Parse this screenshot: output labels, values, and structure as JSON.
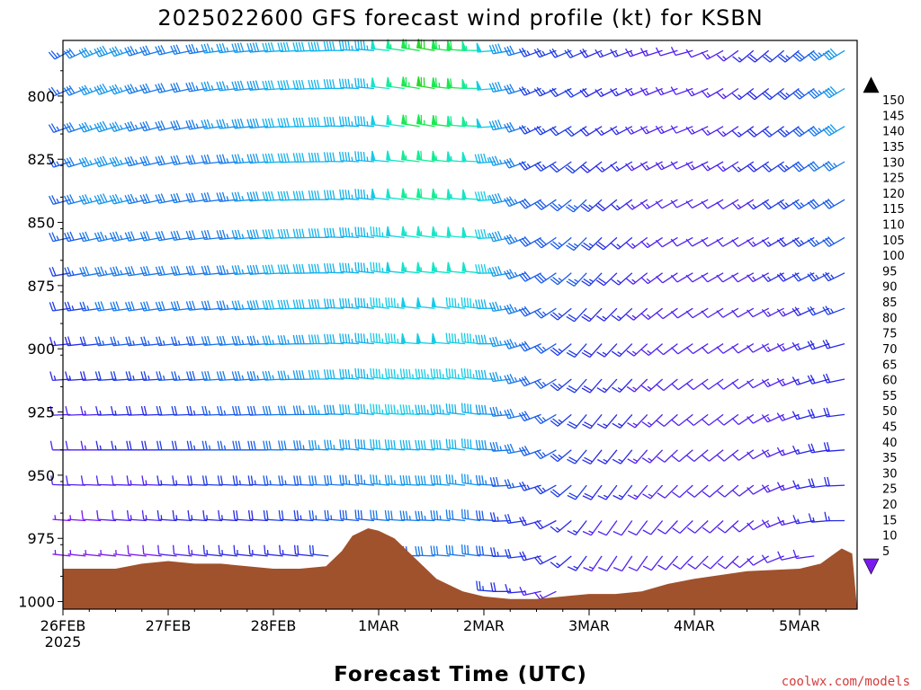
{
  "chart_data": {
    "type": "wind-barb-profile",
    "title": "2025022600 GFS forecast wind profile (kt) for KSBN",
    "xlabel": "Forecast Time (UTC)",
    "x_ticks": [
      {
        "label": "26FEB",
        "day": 0
      },
      {
        "label": "27FEB",
        "day": 1
      },
      {
        "label": "28FEB",
        "day": 2
      },
      {
        "label": "1MAR",
        "day": 3
      },
      {
        "label": "2MAR",
        "day": 4
      },
      {
        "label": "3MAR",
        "day": 5
      },
      {
        "label": "4MAR",
        "day": 6
      },
      {
        "label": "5MAR",
        "day": 7
      }
    ],
    "x_year_label": "2025",
    "xlim_days": [
      0,
      7.5
    ],
    "y_ticks": [
      800,
      825,
      850,
      875,
      900,
      925,
      950,
      975,
      1000
    ],
    "y_unit": "hPa",
    "ylim": [
      1003,
      778
    ],
    "barb_levels": [
      782,
      797,
      812,
      826,
      841,
      856,
      870,
      884,
      898,
      912,
      926,
      940,
      954,
      968,
      982,
      996
    ],
    "colorbar": {
      "unit": "kt",
      "levels": [
        5,
        10,
        15,
        20,
        25,
        30,
        35,
        40,
        45,
        50,
        55,
        60,
        65,
        70,
        75,
        80,
        85,
        90,
        95,
        100,
        105,
        110,
        115,
        120,
        125,
        130,
        135,
        140,
        145,
        150
      ],
      "colors": [
        "#7a18f0",
        "#5020f0",
        "#2828e8",
        "#1e3ce6",
        "#1a5aea",
        "#1878ea",
        "#1496ec",
        "#12b2ec",
        "#14cce6",
        "#16e4c8",
        "#14ec94",
        "#18e850",
        "#28d828",
        "#6ae020",
        "#aaee18",
        "#e0f010",
        "#f6e010",
        "#f8c410",
        "#f8a810",
        "#f88c10",
        "#f87210",
        "#f85a10",
        "#f84010",
        "#f82a18",
        "#f41c30",
        "#ec1650",
        "#e41670",
        "#e41890",
        "#e41cb4",
        "#e020d8"
      ]
    },
    "surface_pressure": {
      "x_days": [
        0,
        0.5,
        0.75,
        1.0,
        1.25,
        1.5,
        1.75,
        2.0,
        2.25,
        2.5,
        2.65,
        2.75,
        2.9,
        3.0,
        3.15,
        3.35,
        3.55,
        3.8,
        4.0,
        4.25,
        4.5,
        4.75,
        5.0,
        5.25,
        5.5,
        5.75,
        6.0,
        6.5,
        7.0,
        7.2,
        7.3,
        7.4,
        7.5
      ],
      "hpa": [
        987,
        987,
        985,
        984,
        985,
        985,
        986,
        987,
        987,
        986,
        980,
        974,
        971,
        972,
        975,
        983,
        991,
        996,
        998,
        999,
        999,
        998,
        997,
        997,
        996,
        993,
        991,
        988,
        987,
        985,
        982,
        979,
        981
      ]
    },
    "barb_rows": [
      {
        "p": 782,
        "wd": [
          240,
          250,
          255,
          262,
          265,
          268,
          275,
          280,
          270,
          250,
          246,
          250,
          255,
          230,
          230,
          240
        ],
        "ws": [
          25,
          40,
          30,
          35,
          40,
          40,
          45,
          70,
          55,
          25,
          20,
          15,
          10,
          15,
          25,
          40
        ]
      },
      {
        "p": 797,
        "wd": [
          245,
          250,
          255,
          262,
          265,
          268,
          275,
          280,
          270,
          248,
          240,
          246,
          250,
          232,
          232,
          240
        ],
        "ws": [
          25,
          40,
          30,
          35,
          40,
          40,
          45,
          70,
          55,
          25,
          20,
          15,
          12,
          15,
          25,
          40
        ]
      },
      {
        "p": 812,
        "wd": [
          250,
          252,
          256,
          262,
          265,
          270,
          275,
          280,
          272,
          246,
          236,
          244,
          248,
          234,
          234,
          240
        ],
        "ws": [
          25,
          40,
          30,
          35,
          40,
          40,
          45,
          65,
          55,
          25,
          20,
          15,
          12,
          15,
          25,
          40
        ]
      },
      {
        "p": 826,
        "wd": [
          252,
          254,
          258,
          263,
          266,
          270,
          275,
          278,
          272,
          244,
          230,
          240,
          246,
          236,
          236,
          240
        ],
        "ws": [
          25,
          40,
          30,
          30,
          40,
          40,
          45,
          60,
          50,
          25,
          20,
          15,
          12,
          15,
          25,
          35
        ]
      },
      {
        "p": 841,
        "wd": [
          255,
          256,
          258,
          263,
          266,
          270,
          276,
          278,
          274,
          242,
          226,
          236,
          244,
          238,
          238,
          240
        ],
        "ws": [
          25,
          40,
          30,
          30,
          40,
          40,
          45,
          60,
          50,
          30,
          25,
          15,
          10,
          12,
          25,
          30
        ]
      },
      {
        "p": 856,
        "wd": [
          258,
          258,
          260,
          264,
          266,
          270,
          276,
          278,
          274,
          242,
          224,
          232,
          242,
          240,
          240,
          240
        ],
        "ws": [
          25,
          35,
          30,
          30,
          40,
          40,
          45,
          55,
          50,
          30,
          25,
          15,
          10,
          10,
          20,
          30
        ]
      },
      {
        "p": 870,
        "wd": [
          260,
          260,
          262,
          264,
          266,
          270,
          276,
          276,
          276,
          244,
          222,
          230,
          240,
          240,
          242,
          244
        ],
        "ws": [
          20,
          35,
          30,
          30,
          40,
          40,
          45,
          55,
          50,
          30,
          25,
          15,
          10,
          10,
          20,
          25
        ]
      },
      {
        "p": 884,
        "wd": [
          262,
          262,
          262,
          265,
          266,
          270,
          276,
          276,
          276,
          246,
          222,
          228,
          238,
          240,
          244,
          250
        ],
        "ws": [
          20,
          30,
          30,
          30,
          40,
          40,
          45,
          50,
          45,
          30,
          20,
          15,
          10,
          10,
          15,
          25
        ]
      },
      {
        "p": 898,
        "wd": [
          264,
          264,
          264,
          265,
          266,
          270,
          276,
          274,
          276,
          248,
          220,
          226,
          236,
          238,
          246,
          256
        ],
        "ws": [
          15,
          25,
          25,
          30,
          35,
          40,
          45,
          50,
          45,
          30,
          20,
          15,
          10,
          10,
          15,
          20
        ]
      },
      {
        "p": 912,
        "wd": [
          266,
          266,
          266,
          266,
          266,
          270,
          276,
          274,
          276,
          250,
          220,
          224,
          234,
          236,
          248,
          260
        ],
        "ws": [
          15,
          20,
          25,
          30,
          35,
          40,
          45,
          45,
          45,
          30,
          20,
          15,
          10,
          10,
          15,
          20
        ]
      },
      {
        "p": 926,
        "wd": [
          268,
          268,
          268,
          268,
          268,
          270,
          276,
          272,
          278,
          252,
          218,
          222,
          232,
          234,
          250,
          265
        ],
        "ws": [
          10,
          15,
          20,
          25,
          30,
          35,
          45,
          45,
          40,
          30,
          20,
          15,
          10,
          10,
          15,
          20
        ]
      },
      {
        "p": 940,
        "wd": [
          270,
          270,
          270,
          270,
          270,
          272,
          276,
          272,
          278,
          254,
          218,
          220,
          230,
          232,
          252,
          268
        ],
        "ws": [
          10,
          15,
          20,
          25,
          30,
          35,
          40,
          40,
          40,
          30,
          20,
          15,
          10,
          10,
          15,
          20
        ]
      },
      {
        "p": 954,
        "wd": [
          272,
          272,
          272,
          272,
          272,
          272,
          276,
          272,
          278,
          256,
          216,
          218,
          228,
          230,
          254,
          270
        ],
        "ws": [
          10,
          10,
          15,
          20,
          25,
          30,
          35,
          40,
          35,
          25,
          20,
          15,
          10,
          10,
          15,
          20
        ]
      },
      {
        "p": 968,
        "wd": [
          274,
          274,
          274,
          274,
          274,
          274,
          276,
          272,
          278,
          258,
          216,
          216,
          226,
          228,
          256,
          272
        ],
        "ws": [
          5,
          10,
          15,
          15,
          20,
          25,
          30,
          35,
          30,
          20,
          15,
          10,
          10,
          10,
          15,
          15
        ]
      },
      {
        "p": 982,
        "wd": [
          276,
          276,
          276,
          276,
          276,
          276,
          276,
          272,
          278,
          260,
          214,
          214,
          224,
          226,
          258,
          274
        ],
        "ws": [
          5,
          5,
          10,
          15,
          15,
          20,
          25,
          30,
          30,
          20,
          15,
          10,
          10,
          10,
          10,
          15
        ]
      },
      {
        "p": 996,
        "wd": [
          278,
          278,
          278,
          278,
          278,
          278,
          276,
          272,
          278,
          262,
          214,
          212,
          222,
          224,
          260,
          276
        ],
        "ws": [
          5,
          5,
          5,
          10,
          10,
          15,
          20,
          25,
          25,
          15,
          10,
          10,
          10,
          10,
          10,
          10
        ]
      }
    ],
    "credit": "coolwx.com/models"
  }
}
